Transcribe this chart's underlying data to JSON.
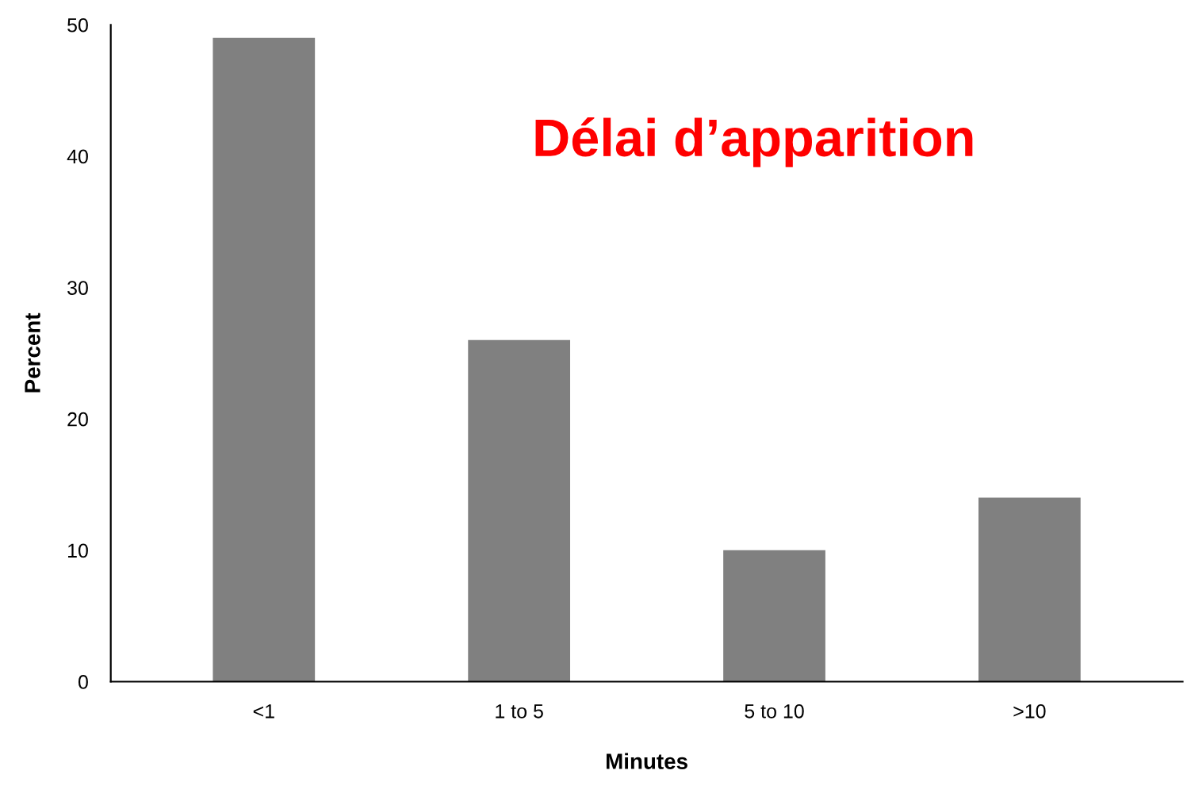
{
  "chart_data": {
    "type": "bar",
    "title": "Délai d’apparition",
    "xlabel": "Minutes",
    "ylabel": "Percent",
    "categories": [
      "<1",
      "1 to 5",
      "5 to 10",
      ">10"
    ],
    "values": [
      49,
      26,
      10,
      14
    ],
    "color": "#808080",
    "ylim": [
      0,
      50
    ],
    "yticks": [
      0,
      10,
      20,
      30,
      40,
      50
    ],
    "grid": false
  }
}
